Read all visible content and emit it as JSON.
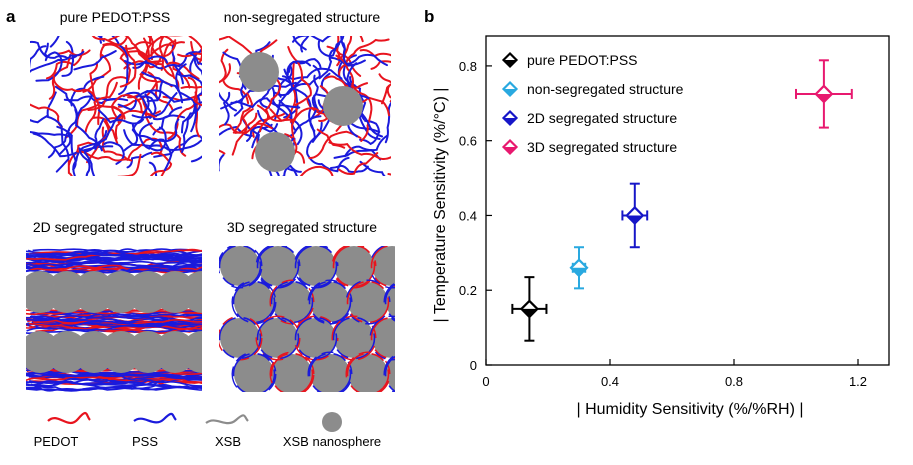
{
  "panel_a": {
    "label": "a",
    "quadrants": [
      {
        "title": "pure PEDOT:PSS"
      },
      {
        "title": "non-segregated structure"
      },
      {
        "title": "2D segregated structure"
      },
      {
        "title": "3D segregated structure"
      }
    ],
    "legend": [
      {
        "label": "PEDOT",
        "color": "#e8141e",
        "icon": "red-chain-icon"
      },
      {
        "label": "PSS",
        "color": "#1a1adc",
        "icon": "blue-chain-icon"
      },
      {
        "label": "XSB",
        "color": "#8c8c8c",
        "icon": "gray-chain-icon"
      },
      {
        "label": "XSB nanosphere",
        "color": "#8c8c8c",
        "icon": "nanosphere-icon"
      }
    ]
  },
  "chart_data": {
    "panel_label": "b",
    "type": "scatter",
    "xlabel": "| Humidity Sensitivity (%/%RH) |",
    "ylabel": "| Temperature Sensitivity (%/°C) |",
    "xlim": [
      0,
      1.3
    ],
    "ylim": [
      0,
      0.88
    ],
    "xticks": [
      0,
      0.4,
      0.8,
      1.2
    ],
    "xtick_labels": [
      "0",
      "0.4",
      "0.8",
      "1.2"
    ],
    "yticks": [
      0,
      0.2,
      0.4,
      0.6,
      0.8
    ],
    "ytick_labels": [
      "0",
      "0.2",
      "0.4",
      "0.6",
      "0.8"
    ],
    "grid": false,
    "legend_position": "top-left",
    "series": [
      {
        "name": "pure PEDOT:PSS",
        "color": "#000000",
        "x": 0.14,
        "y": 0.15,
        "xerr": 0.055,
        "yerr": 0.085
      },
      {
        "name": "non-segregated structure",
        "color": "#29a9e0",
        "x": 0.3,
        "y": 0.26,
        "xerr": 0.02,
        "yerr": 0.055
      },
      {
        "name": "2D segregated structure",
        "color": "#1616c8",
        "x": 0.48,
        "y": 0.4,
        "xerr": 0.04,
        "yerr": 0.085
      },
      {
        "name": "3D segregated structure",
        "color": "#e8196f",
        "x": 1.09,
        "y": 0.725,
        "xerr": 0.09,
        "yerr": 0.09
      }
    ]
  }
}
